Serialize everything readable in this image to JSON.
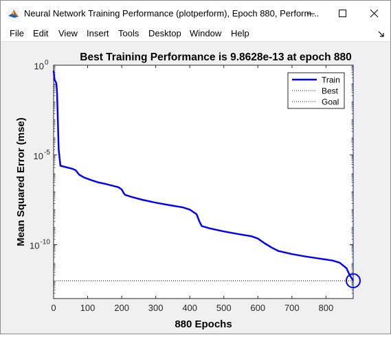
{
  "window": {
    "title": "Neural Network Training Performance (plotperform), Epoch 880, Perform...",
    "controls": {
      "minimize": "minimize",
      "maximize": "maximize",
      "close": "close"
    }
  },
  "menu": {
    "items": [
      "File",
      "Edit",
      "View",
      "Insert",
      "Tools",
      "Desktop",
      "Window",
      "Help"
    ]
  },
  "icons": {
    "app": "matlab-icon",
    "dock": "dock-arrow-icon"
  },
  "colors": {
    "train": "#0000ff",
    "best_marker": "#0000ff",
    "background": "#f0f0f0",
    "axes": "#ffffff"
  },
  "chart_data": {
    "type": "line",
    "title": "Best Training Performance is 9.8628e-13 at epoch 880",
    "xlabel": "880 Epochs",
    "ylabel": "Mean Squared Error  (mse)",
    "xlim": [
      0,
      880
    ],
    "ylim": [
      1e-13,
      1
    ],
    "yscale": "log",
    "xticks": [
      0,
      100,
      200,
      300,
      400,
      500,
      600,
      700,
      800
    ],
    "yticks": [
      {
        "value": 1,
        "base": "10",
        "exp": "0"
      },
      {
        "value": 1e-05,
        "base": "10",
        "exp": "-5"
      },
      {
        "value": 1e-10,
        "base": "10",
        "exp": "-10"
      }
    ],
    "legend": {
      "position": "top-right",
      "entries": [
        "Train",
        "Best",
        "Goal"
      ]
    },
    "grid": false,
    "series": [
      {
        "name": "Train",
        "x": [
          0,
          3,
          8,
          10,
          15,
          20,
          40,
          55,
          65,
          75,
          90,
          110,
          130,
          150,
          170,
          190,
          200,
          205,
          210,
          230,
          260,
          300,
          340,
          380,
          400,
          420,
          428,
          435,
          460,
          500,
          540,
          580,
          600,
          620,
          640,
          660,
          700,
          740,
          780,
          800,
          820,
          840,
          860,
          870,
          880
        ],
        "y": [
          0.5,
          0.15,
          0.1,
          0.03,
          2e-05,
          2.5e-06,
          2e-06,
          1.7e-06,
          1.4e-06,
          8e-07,
          5.5e-07,
          4e-07,
          3e-07,
          2.5e-07,
          2e-07,
          1.6e-07,
          1.2e-07,
          8e-08,
          6e-08,
          4.5e-08,
          3.2e-08,
          2.2e-08,
          1.6e-08,
          1.2e-08,
          9e-09,
          5e-09,
          2e-09,
          1.1e-09,
          8e-10,
          5.5e-10,
          4e-10,
          3e-10,
          2.2e-10,
          1.2e-10,
          7e-11,
          4.5e-11,
          3e-11,
          2.2e-11,
          1.7e-11,
          1.5e-11,
          1.3e-11,
          1e-11,
          5e-12,
          2e-12,
          9.8628e-13
        ]
      },
      {
        "name": "Best",
        "x": [
          880,
          880
        ],
        "y": [
          1e-13,
          1
        ]
      },
      {
        "name": "Goal",
        "x": [
          0,
          880
        ],
        "y": [
          9.8628e-13,
          9.8628e-13
        ]
      }
    ],
    "best_point": {
      "x": 880,
      "y": 9.8628e-13
    }
  }
}
